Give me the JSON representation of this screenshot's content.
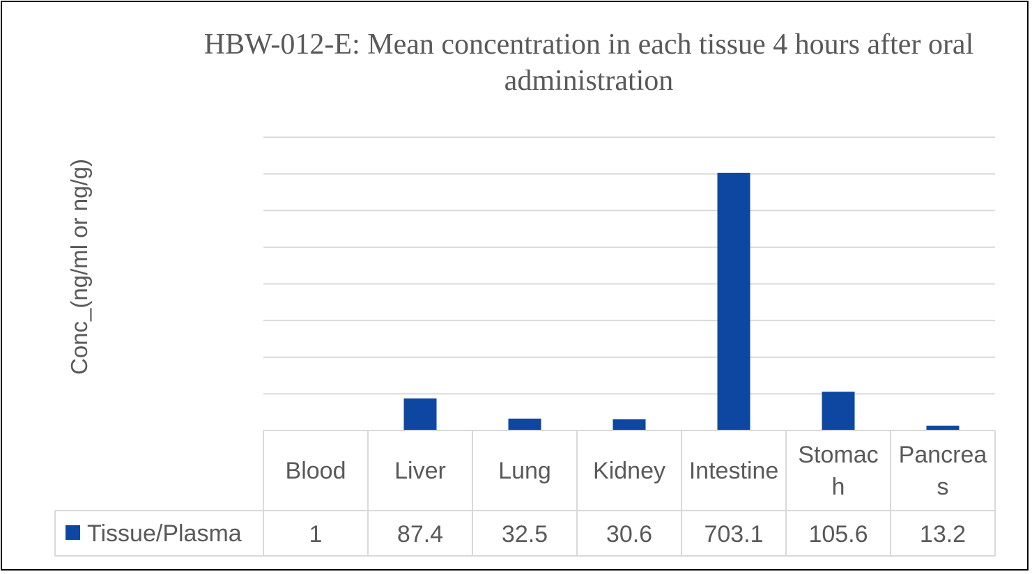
{
  "chart_data": {
    "type": "bar",
    "title": "HBW-012-E: Mean concentration in each tissue 4 hours after oral administration",
    "ylabel": "Conc_(ng/ml or ng/g)",
    "xlabel": "",
    "categories": [
      [
        "Blood"
      ],
      [
        "Liver"
      ],
      [
        "Lung"
      ],
      [
        "Kidney"
      ],
      [
        "Intestine"
      ],
      [
        "Stomac",
        "h"
      ],
      [
        "Pancrea",
        "s"
      ]
    ],
    "series": [
      {
        "name": "Tissue/Plasma",
        "color": "#0d47a1",
        "values": [
          1,
          87.4,
          32.5,
          30.6,
          703.1,
          105.6,
          13.2
        ]
      }
    ],
    "value_labels": [
      "1",
      "87.4",
      "32.5",
      "30.6",
      "703.1",
      "105.6",
      "13.2"
    ],
    "ylim": [
      0,
      800
    ],
    "gridlines": 8,
    "grid": true,
    "tick_labels_visible": false,
    "legend": "data-table",
    "data_table": true
  }
}
